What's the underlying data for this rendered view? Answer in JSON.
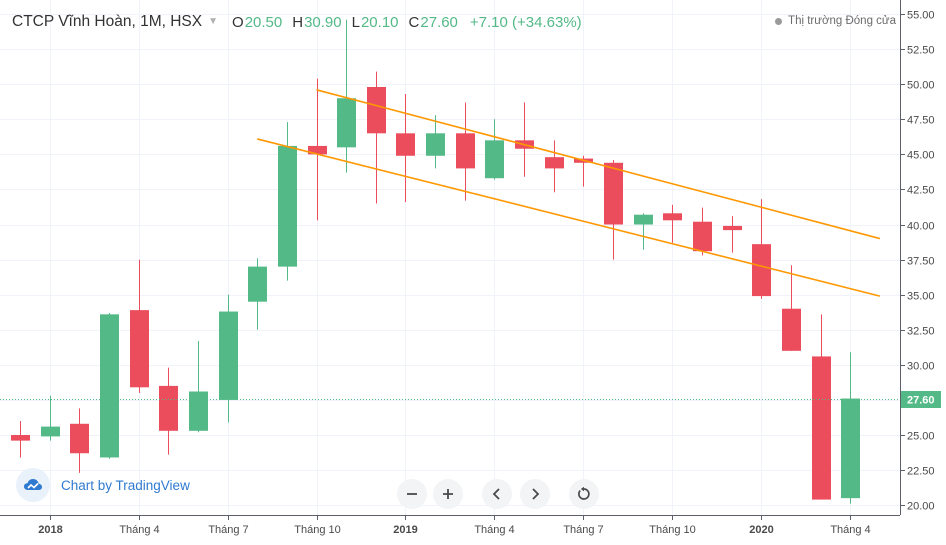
{
  "header": {
    "symbol": "CTCP Vĩnh Hoàn, 1M, HSX",
    "open_key": "O",
    "open": "20.50",
    "high_key": "H",
    "high": "30.90",
    "low_key": "L",
    "low": "20.10",
    "close_key": "C",
    "close": "27.60",
    "change": "+7.10 (+34.63%)"
  },
  "market_status": "Thị trường Đóng cửa",
  "branding": "Chart by TradingView",
  "colors": {
    "up": "#53b987",
    "down": "#eb4d5c",
    "trendline": "#ff9800",
    "price_line": "#53b987",
    "grid": "#f0f3fa"
  },
  "chart_data": {
    "type": "candlestick",
    "y_range": [
      19.3,
      56.0
    ],
    "y_ticks": [
      "55.00",
      "52.50",
      "50.00",
      "47.50",
      "45.00",
      "42.50",
      "40.00",
      "37.50",
      "35.00",
      "32.50",
      "30.00",
      "27.50",
      "25.00",
      "22.50",
      "20.00"
    ],
    "x_ticks": [
      {
        "label": "2018",
        "i": 1,
        "bold": true
      },
      {
        "label": "Tháng 4",
        "i": 4,
        "bold": false
      },
      {
        "label": "Tháng 7",
        "i": 7,
        "bold": false
      },
      {
        "label": "Tháng 10",
        "i": 10,
        "bold": false
      },
      {
        "label": "2019",
        "i": 13,
        "bold": true
      },
      {
        "label": "Tháng 4",
        "i": 16,
        "bold": false
      },
      {
        "label": "Tháng 7",
        "i": 19,
        "bold": false
      },
      {
        "label": "Tháng 10",
        "i": 22,
        "bold": false
      },
      {
        "label": "2020",
        "i": 25,
        "bold": true
      },
      {
        "label": "Tháng 4",
        "i": 28,
        "bold": false
      }
    ],
    "candles": [
      {
        "o": 25.0,
        "h": 26.0,
        "l": 23.4,
        "c": 24.6
      },
      {
        "o": 24.9,
        "h": 27.8,
        "l": 24.6,
        "c": 25.6
      },
      {
        "o": 25.8,
        "h": 26.9,
        "l": 22.3,
        "c": 23.7
      },
      {
        "o": 23.4,
        "h": 33.7,
        "l": 23.3,
        "c": 33.6
      },
      {
        "o": 33.9,
        "h": 37.5,
        "l": 28.0,
        "c": 28.4
      },
      {
        "o": 28.5,
        "h": 29.8,
        "l": 23.6,
        "c": 25.3
      },
      {
        "o": 25.3,
        "h": 31.7,
        "l": 25.2,
        "c": 28.1
      },
      {
        "o": 27.5,
        "h": 35.0,
        "l": 25.9,
        "c": 33.8
      },
      {
        "o": 34.5,
        "h": 37.6,
        "l": 32.5,
        "c": 37.0
      },
      {
        "o": 37.0,
        "h": 47.3,
        "l": 36.0,
        "c": 45.6
      },
      {
        "o": 45.6,
        "h": 50.4,
        "l": 40.3,
        "c": 45.0
      },
      {
        "o": 45.5,
        "h": 54.6,
        "l": 43.7,
        "c": 49.0
      },
      {
        "o": 49.8,
        "h": 50.9,
        "l": 41.5,
        "c": 46.5
      },
      {
        "o": 46.5,
        "h": 49.3,
        "l": 41.6,
        "c": 44.9
      },
      {
        "o": 44.9,
        "h": 47.8,
        "l": 44.0,
        "c": 46.5
      },
      {
        "o": 46.5,
        "h": 48.7,
        "l": 41.7,
        "c": 44.0
      },
      {
        "o": 43.3,
        "h": 47.5,
        "l": 43.2,
        "c": 46.0
      },
      {
        "o": 46.0,
        "h": 48.7,
        "l": 43.4,
        "c": 45.4
      },
      {
        "o": 44.8,
        "h": 46.0,
        "l": 42.3,
        "c": 44.0
      },
      {
        "o": 44.7,
        "h": 44.9,
        "l": 42.7,
        "c": 44.4
      },
      {
        "o": 44.4,
        "h": 44.6,
        "l": 37.5,
        "c": 40.0
      },
      {
        "o": 40.0,
        "h": 40.8,
        "l": 38.2,
        "c": 40.7
      },
      {
        "o": 40.8,
        "h": 41.4,
        "l": 38.7,
        "c": 40.3
      },
      {
        "o": 40.2,
        "h": 41.2,
        "l": 37.8,
        "c": 38.1
      },
      {
        "o": 39.9,
        "h": 40.6,
        "l": 38.0,
        "c": 39.6
      },
      {
        "o": 38.6,
        "h": 41.8,
        "l": 34.7,
        "c": 34.9
      },
      {
        "o": 34.0,
        "h": 37.1,
        "l": 31.0,
        "c": 31.0
      },
      {
        "o": 30.6,
        "h": 33.6,
        "l": 20.4,
        "c": 20.4
      },
      {
        "o": 20.5,
        "h": 30.9,
        "l": 20.1,
        "c": 27.6
      }
    ],
    "trendlines": [
      {
        "i1": 10,
        "v1": 49.6,
        "i2": 29,
        "v2": 39.0
      },
      {
        "i1": 8,
        "v1": 46.1,
        "i2": 29,
        "v2": 34.9
      }
    ],
    "last_price": "27.60",
    "last_value": 27.6
  }
}
